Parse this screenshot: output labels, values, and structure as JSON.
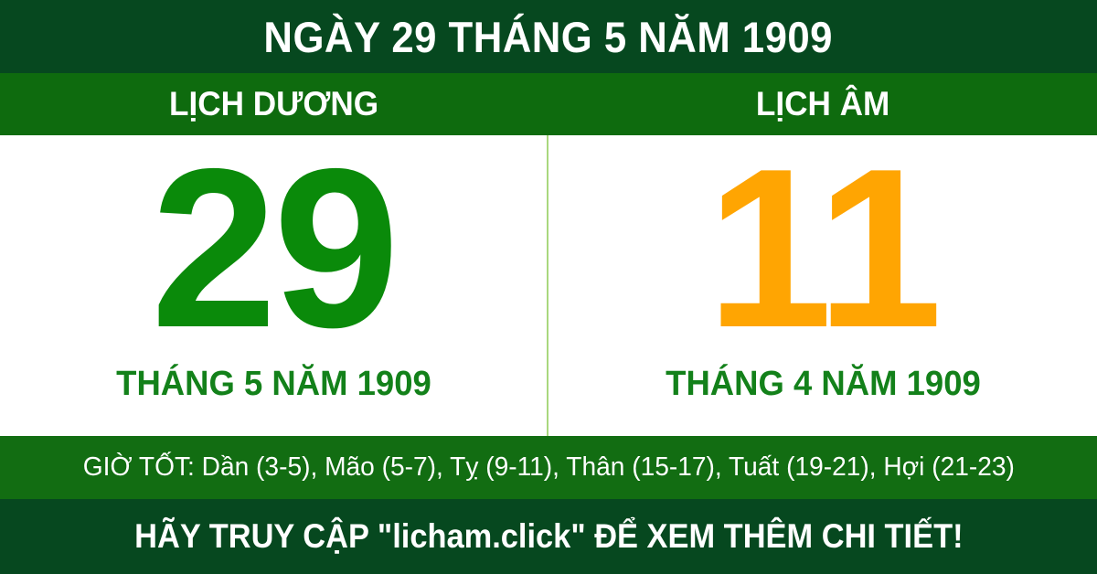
{
  "header": {
    "title": "NGÀY 29 THÁNG 5 NĂM 1909"
  },
  "calendar": {
    "solar": {
      "label": "LỊCH DƯƠNG",
      "day": "29",
      "month_year": "THÁNG 5 NĂM 1909"
    },
    "lunar": {
      "label": "LỊCH ÂM",
      "day": "11",
      "month_year": "THÁNG 4 NĂM 1909"
    }
  },
  "good_hours": {
    "text": "GIỜ TỐT: Dần (3-5), Mão (5-7), Tỵ (9-11), Thân (15-17), Tuất (19-21), Hợi (21-23)"
  },
  "footer": {
    "text": "HÃY TRUY CẬP \"licham.click\" ĐỂ XEM THÊM CHI TIẾT!"
  },
  "colors": {
    "dark_green": "#06481F",
    "header_bar_green": "#0E6B0E",
    "good_hours_green": "#126D12",
    "solar_day_green": "#0A8A0A",
    "month_text_green": "#13811A",
    "lunar_day_orange": "#FFA502",
    "divider_light_green": "#A9D87E",
    "text_white": "#FFFFFF"
  }
}
